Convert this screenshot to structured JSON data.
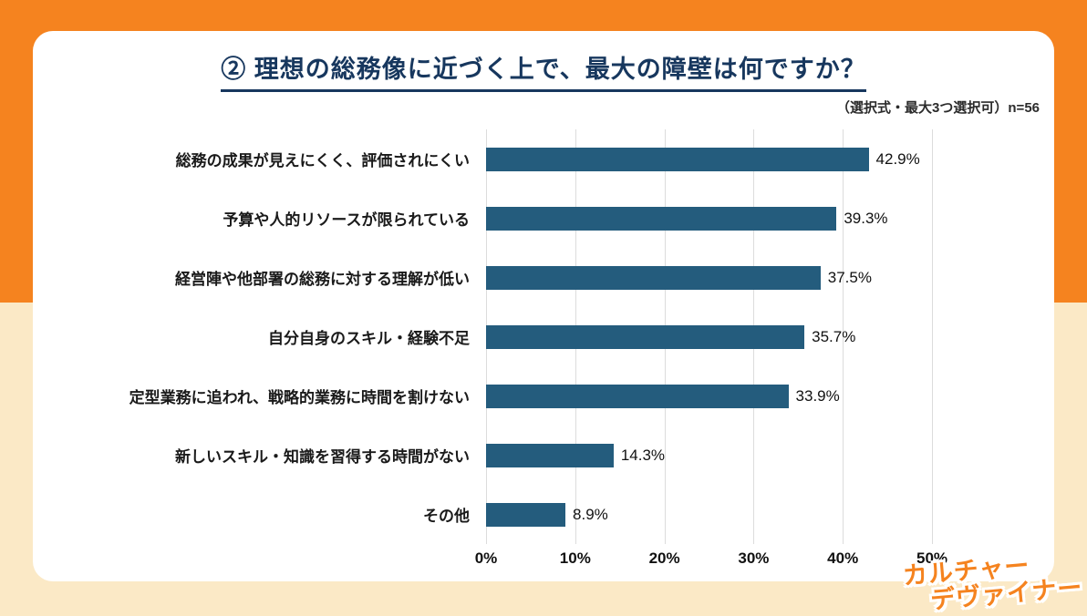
{
  "page": {
    "background_top_color": "#F5831F",
    "background_bottom_color": "#FBE9C6",
    "card_color": "#FFFFFF"
  },
  "header": {
    "title": "② 理想の総務像に近づく上で、最大の障壁は何ですか？",
    "note": "（選択式・最大3つ選択可）n=56"
  },
  "chart_data": {
    "type": "bar",
    "orientation": "horizontal",
    "title": "② 理想の総務像に近づく上で、最大の障壁は何ですか？",
    "subtitle": "（選択式・最大3つ選択可）n=56",
    "n": 56,
    "categories": [
      "総務の成果が見えにくく、評価されにくい",
      "予算や人的リソースが限られている",
      "経営陣や他部署の総務に対する理解が低い",
      "自分自身のスキル・経験不足",
      "定型業務に追われ、戦略的業務に時間を割けない",
      "新しいスキル・知識を習得する時間がない",
      "その他"
    ],
    "values": [
      42.9,
      39.3,
      37.5,
      35.7,
      33.9,
      14.3,
      8.9
    ],
    "value_labels": [
      "42.9%",
      "39.3%",
      "37.5%",
      "35.7%",
      "33.9%",
      "14.3%",
      "8.9%"
    ],
    "xlabel": "",
    "ylabel": "",
    "xlim": [
      0,
      50
    ],
    "x_ticks": [
      "0%",
      "10%",
      "20%",
      "30%",
      "40%",
      "50%"
    ],
    "grid": true,
    "bar_color": "#245C7D",
    "legend": "none"
  },
  "logo": {
    "line1": "カルチャー",
    "line2": "デヴァイナー",
    "color": "#F5831F"
  }
}
